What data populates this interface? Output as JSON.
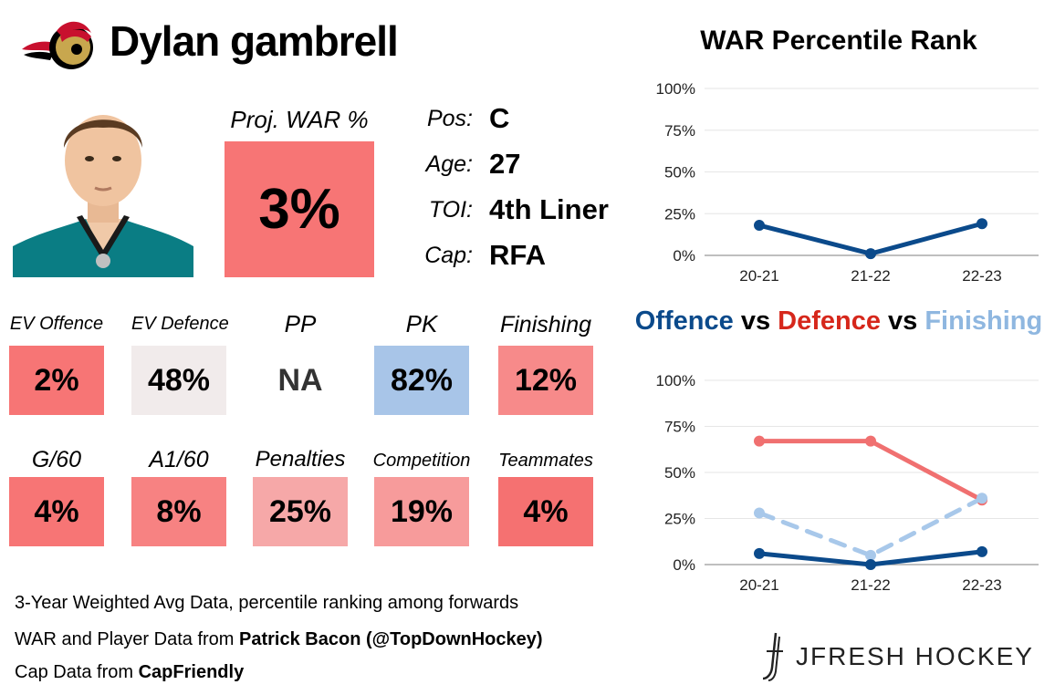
{
  "header": {
    "player_name": "Dylan gambrell"
  },
  "projection": {
    "label": "Proj. WAR %",
    "value": "3%",
    "color": "#f77575"
  },
  "info": [
    {
      "key": "Pos:",
      "value": "C"
    },
    {
      "key": "Age:",
      "value": "27"
    },
    {
      "key": "TOI:",
      "value": "4th Liner"
    },
    {
      "key": "Cap:",
      "value": "RFA"
    }
  ],
  "tiles_row1": [
    {
      "label": "EV Offence",
      "value": "2%",
      "color": "#f77575"
    },
    {
      "label": "EV Defence",
      "value": "48%",
      "color": "#f1ebeb"
    },
    {
      "label": "PP",
      "value": "NA",
      "color": "#ffffff"
    },
    {
      "label": "PK",
      "value": "82%",
      "color": "#a8c5e8"
    },
    {
      "label": "Finishing",
      "value": "12%",
      "color": "#f78a8a"
    }
  ],
  "tiles_row2": [
    {
      "label": "G/60",
      "value": "4%",
      "color": "#f77575"
    },
    {
      "label": "A1/60",
      "value": "8%",
      "color": "#f78282"
    },
    {
      "label": "Penalties",
      "value": "25%",
      "color": "#f6a8a8"
    },
    {
      "label": "Competition",
      "value": "19%",
      "color": "#f79b9b"
    },
    {
      "label": "Teammates",
      "value": "4%",
      "color": "#f57171"
    }
  ],
  "footer": {
    "line1": "3-Year Weighted Avg Data, percentile ranking among forwards",
    "line2_prefix": "WAR and Player Data from ",
    "line2_bold": "Patrick Bacon (@TopDownHockey)",
    "line3_prefix": "Cap Data from ",
    "line3_bold": "CapFriendly"
  },
  "brand": {
    "name": "JFRESH HOCKEY"
  },
  "chart_data": [
    {
      "type": "line",
      "title": "WAR Percentile Rank",
      "categories": [
        "20-21",
        "21-22",
        "22-23"
      ],
      "y_ticks": [
        "0%",
        "25%",
        "50%",
        "75%",
        "100%"
      ],
      "ylim": [
        0,
        100
      ],
      "grid": true,
      "series": [
        {
          "values": [
            18,
            1,
            19
          ],
          "color": "#0b4a8b",
          "dashed": false
        }
      ]
    },
    {
      "type": "line",
      "title_parts": [
        {
          "text": "Offence",
          "color": "#0b4a8b"
        },
        {
          "text": " vs ",
          "color": "#000000"
        },
        {
          "text": "Defence",
          "color": "#d6271b"
        },
        {
          "text": " vs ",
          "color": "#000000"
        },
        {
          "text": "Finishing",
          "color": "#8fb7e0"
        }
      ],
      "categories": [
        "20-21",
        "21-22",
        "22-23"
      ],
      "y_ticks": [
        "0%",
        "25%",
        "50%",
        "75%",
        "100%"
      ],
      "ylim": [
        0,
        100
      ],
      "grid": true,
      "series": [
        {
          "name": "Defence",
          "values": [
            67,
            67,
            35
          ],
          "color": "#f07070",
          "dashed": false
        },
        {
          "name": "Finishing",
          "values": [
            28,
            5,
            36
          ],
          "color": "#a8c8ea",
          "dashed": true
        },
        {
          "name": "Offence",
          "values": [
            6,
            0,
            7
          ],
          "color": "#0b4a8b",
          "dashed": false
        }
      ]
    }
  ]
}
